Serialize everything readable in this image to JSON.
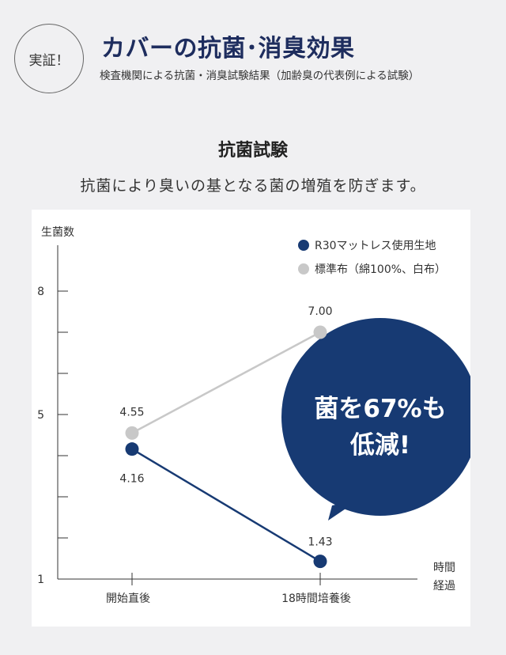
{
  "header": {
    "badge": "実証！",
    "title": "カバーの抗菌･消臭効果",
    "subtitle": "検査機関による抗菌・消臭試験結果（加齢臭の代表例による試験）"
  },
  "section": {
    "title": "抗菌試験",
    "description": "抗菌により臭いの基となる菌の増殖を防ぎます。"
  },
  "colors": {
    "navy": "#173a73",
    "gray": "#c8c8c8",
    "axis": "#333333",
    "bubble": "#173a73"
  },
  "callout": {
    "line1": "菌を67%も",
    "line2": "低減!"
  },
  "chart_data": {
    "type": "line",
    "ylabel": "生菌数",
    "xlabel": "時間\n経過",
    "ylim": [
      1,
      9.3
    ],
    "yticks_labeled": [
      1,
      5,
      8
    ],
    "yticks_minor": [
      2,
      3,
      4,
      6,
      7
    ],
    "categories": [
      "開始直後",
      "18時間培養後"
    ],
    "series": [
      {
        "name": "R30マットレス使用生地",
        "values": [
          4.16,
          1.43
        ],
        "labels": [
          "4.16",
          "1.43"
        ],
        "color": "#173a73"
      },
      {
        "name": "標準布（綿100%、白布）",
        "values": [
          4.55,
          7.0
        ],
        "labels": [
          "4.55",
          "7.00"
        ],
        "color": "#c8c8c8"
      }
    ],
    "legend_position": "top-right"
  }
}
